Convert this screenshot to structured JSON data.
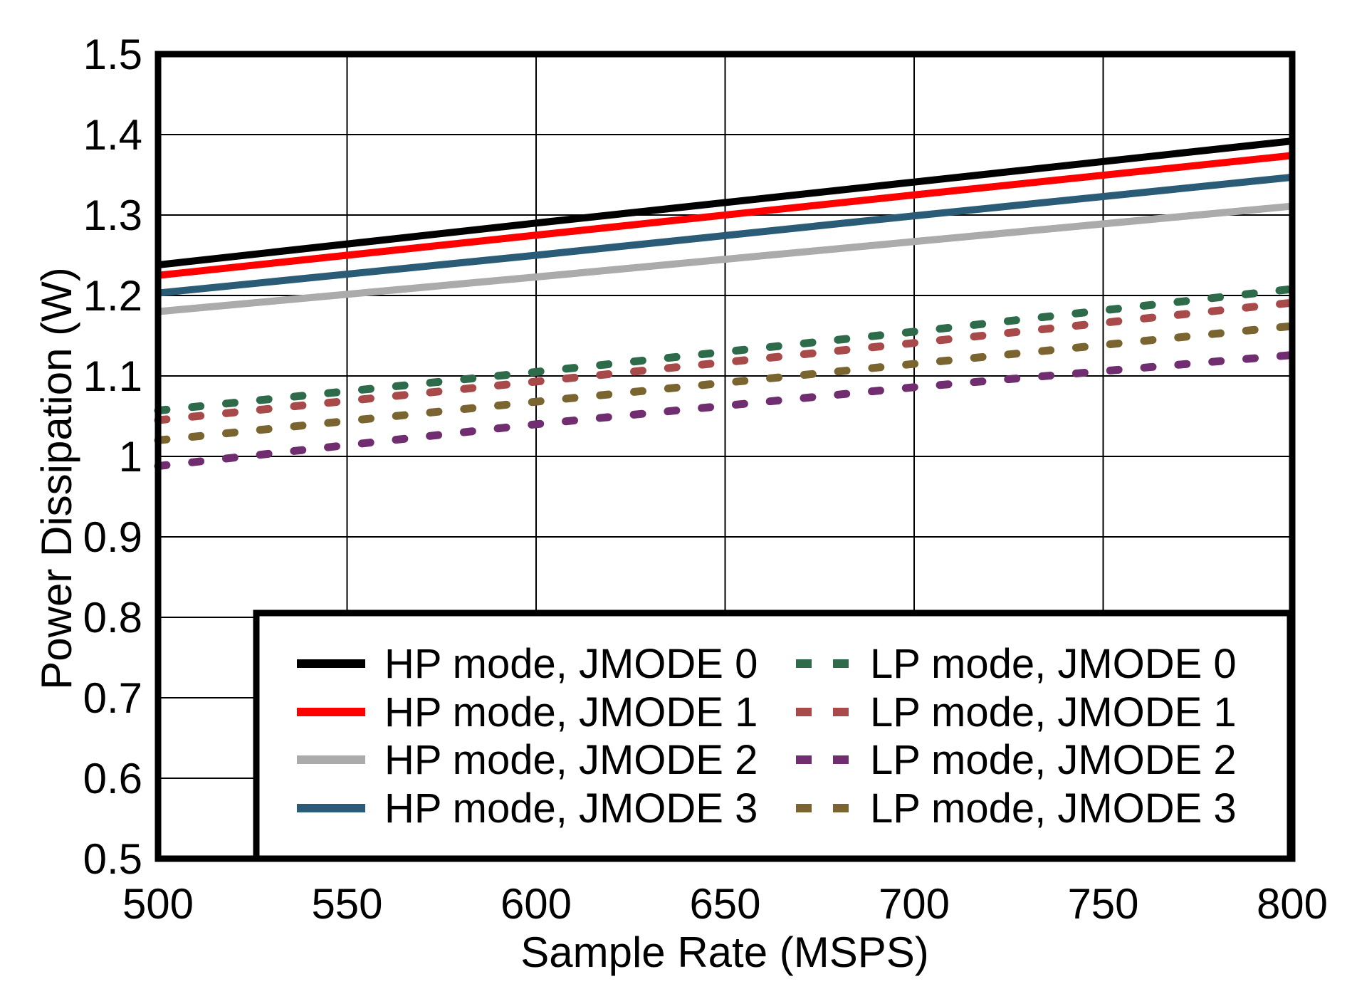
{
  "chart_data": {
    "type": "line",
    "title": "",
    "xlabel": "Sample Rate (MSPS)",
    "ylabel": "Power Dissipation (W)",
    "xlim": [
      500,
      800
    ],
    "ylim": [
      0.5,
      1.5
    ],
    "xticks": [
      500,
      550,
      600,
      650,
      700,
      750,
      800
    ],
    "xtick_labels": [
      "500",
      "550",
      "600",
      "650",
      "700",
      "750",
      "800"
    ],
    "yticks": [
      0.5,
      0.6,
      0.7,
      0.8,
      0.9,
      1.0,
      1.1,
      1.2,
      1.3,
      1.4,
      1.5
    ],
    "ytick_labels": [
      "0.5",
      "0.6",
      "0.7",
      "0.8",
      "0.9",
      "1",
      "1.1",
      "1.2",
      "1.3",
      "1.4",
      "1.5"
    ],
    "grid": true,
    "background_color": "#ffffff",
    "grid_color": "#000000",
    "x": [
      500,
      600,
      700,
      800
    ],
    "series": [
      {
        "name": "HP mode, JMODE 0",
        "color": "#000000",
        "style": "solid",
        "values": [
          1.238,
          1.29,
          1.341,
          1.392
        ]
      },
      {
        "name": "HP mode, JMODE 1",
        "color": "#FF0000",
        "style": "solid",
        "values": [
          1.225,
          1.275,
          1.325,
          1.374
        ]
      },
      {
        "name": "HP mode, JMODE 2",
        "color": "#ABABAB",
        "style": "solid",
        "values": [
          1.18,
          1.223,
          1.267,
          1.311
        ]
      },
      {
        "name": "HP mode, JMODE 3",
        "color": "#2B5C77",
        "style": "solid",
        "values": [
          1.203,
          1.25,
          1.299,
          1.347
        ]
      },
      {
        "name": "LP mode, JMODE 0",
        "color": "#2D6B4B",
        "style": "dashed",
        "values": [
          1.057,
          1.105,
          1.155,
          1.208
        ]
      },
      {
        "name": "LP mode, JMODE 1",
        "color": "#A84A4A",
        "style": "dashed",
        "values": [
          1.045,
          1.093,
          1.141,
          1.191
        ]
      },
      {
        "name": "LP mode, JMODE 2",
        "color": "#702D70",
        "style": "dashed",
        "values": [
          0.988,
          1.04,
          1.086,
          1.126
        ]
      },
      {
        "name": "LP mode, JMODE 3",
        "color": "#7A6530",
        "style": "dashed",
        "values": [
          1.02,
          1.068,
          1.115,
          1.162
        ]
      }
    ],
    "legend": {
      "position": "inside-bottom-right",
      "columns": [
        [
          "HP mode, JMODE 0",
          "HP mode, JMODE 1",
          "HP mode, JMODE 2",
          "HP mode, JMODE 3"
        ],
        [
          "LP mode, JMODE 0",
          "LP mode, JMODE 1",
          "LP mode, JMODE 2",
          "LP mode, JMODE 3"
        ]
      ]
    }
  }
}
